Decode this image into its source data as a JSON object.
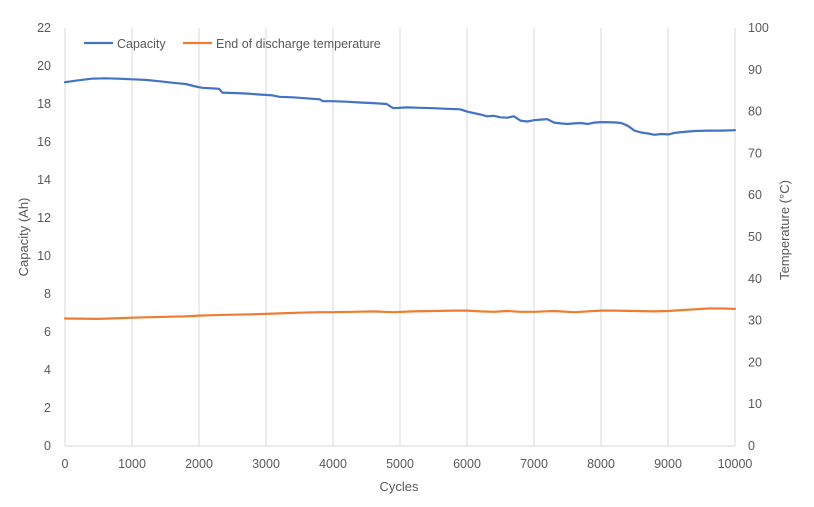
{
  "chart_data": {
    "type": "line",
    "title": "",
    "xlabel": "Cycles",
    "ylabel": "Capacity (Ah)",
    "y2label": "Temperature (°C)",
    "xlim": [
      0,
      10000
    ],
    "ylim": [
      0,
      22
    ],
    "y2lim": [
      0,
      100
    ],
    "x_ticks": [
      "0",
      "1000",
      "2000",
      "3000",
      "4000",
      "5000",
      "6000",
      "7000",
      "8000",
      "9000",
      "10000"
    ],
    "y_ticks": [
      "0",
      "2",
      "4",
      "6",
      "8",
      "10",
      "12",
      "14",
      "16",
      "18",
      "20",
      "22"
    ],
    "y2_ticks": [
      "0",
      "10",
      "20",
      "30",
      "40",
      "50",
      "60",
      "70",
      "80",
      "90",
      "100"
    ],
    "grid": "vertical",
    "legend_position": "top-left",
    "series": [
      {
        "name": "Capacity",
        "axis": "left",
        "color": "#4472C4",
        "x": [
          0,
          200,
          400,
          600,
          800,
          1000,
          1200,
          1400,
          1600,
          1800,
          1950,
          2050,
          2200,
          2300,
          2350,
          2500,
          2700,
          2900,
          3100,
          3200,
          3400,
          3600,
          3800,
          3850,
          4000,
          4200,
          4400,
          4600,
          4800,
          4900,
          5100,
          5300,
          5500,
          5700,
          5900,
          6000,
          6100,
          6200,
          6300,
          6400,
          6500,
          6600,
          6700,
          6800,
          6900,
          7000,
          7100,
          7200,
          7300,
          7400,
          7500,
          7600,
          7700,
          7800,
          7900,
          8000,
          8200,
          8300,
          8400,
          8500,
          8600,
          8700,
          8800,
          8900,
          9000,
          9100,
          9200,
          9400,
          9600,
          9800,
          10000
        ],
        "values": [
          19.15,
          19.25,
          19.33,
          19.35,
          19.33,
          19.3,
          19.27,
          19.2,
          19.12,
          19.05,
          18.92,
          18.85,
          18.82,
          18.8,
          18.6,
          18.58,
          18.55,
          18.5,
          18.45,
          18.38,
          18.35,
          18.3,
          18.25,
          18.15,
          18.15,
          18.12,
          18.08,
          18.05,
          18.0,
          17.78,
          17.82,
          17.8,
          17.78,
          17.75,
          17.72,
          17.6,
          17.52,
          17.45,
          17.35,
          17.38,
          17.3,
          17.28,
          17.35,
          17.12,
          17.08,
          17.15,
          17.18,
          17.2,
          17.02,
          16.98,
          16.95,
          16.98,
          17.0,
          16.95,
          17.02,
          17.05,
          17.03,
          17.0,
          16.85,
          16.6,
          16.5,
          16.45,
          16.38,
          16.42,
          16.4,
          16.48,
          16.52,
          16.58,
          16.6,
          16.6,
          16.62
        ]
      },
      {
        "name": "End of discharge temperature",
        "axis": "right",
        "color": "#ED7D31",
        "x": [
          0,
          500,
          1000,
          1500,
          1800,
          2000,
          2200,
          2500,
          2800,
          3000,
          3300,
          3500,
          3800,
          4000,
          4300,
          4600,
          4900,
          5200,
          5500,
          5800,
          6000,
          6200,
          6400,
          6600,
          6800,
          7000,
          7300,
          7600,
          7900,
          8000,
          8200,
          8500,
          8800,
          9000,
          9200,
          9400,
          9600,
          9800,
          10000
        ],
        "values": [
          30.5,
          30.4,
          30.7,
          30.9,
          31.0,
          31.2,
          31.3,
          31.4,
          31.5,
          31.6,
          31.8,
          31.9,
          32.0,
          32.0,
          32.1,
          32.2,
          32.0,
          32.2,
          32.3,
          32.4,
          32.4,
          32.2,
          32.1,
          32.3,
          32.1,
          32.1,
          32.3,
          32.0,
          32.3,
          32.4,
          32.4,
          32.3,
          32.2,
          32.3,
          32.5,
          32.7,
          32.9,
          32.9,
          32.8
        ]
      }
    ]
  }
}
